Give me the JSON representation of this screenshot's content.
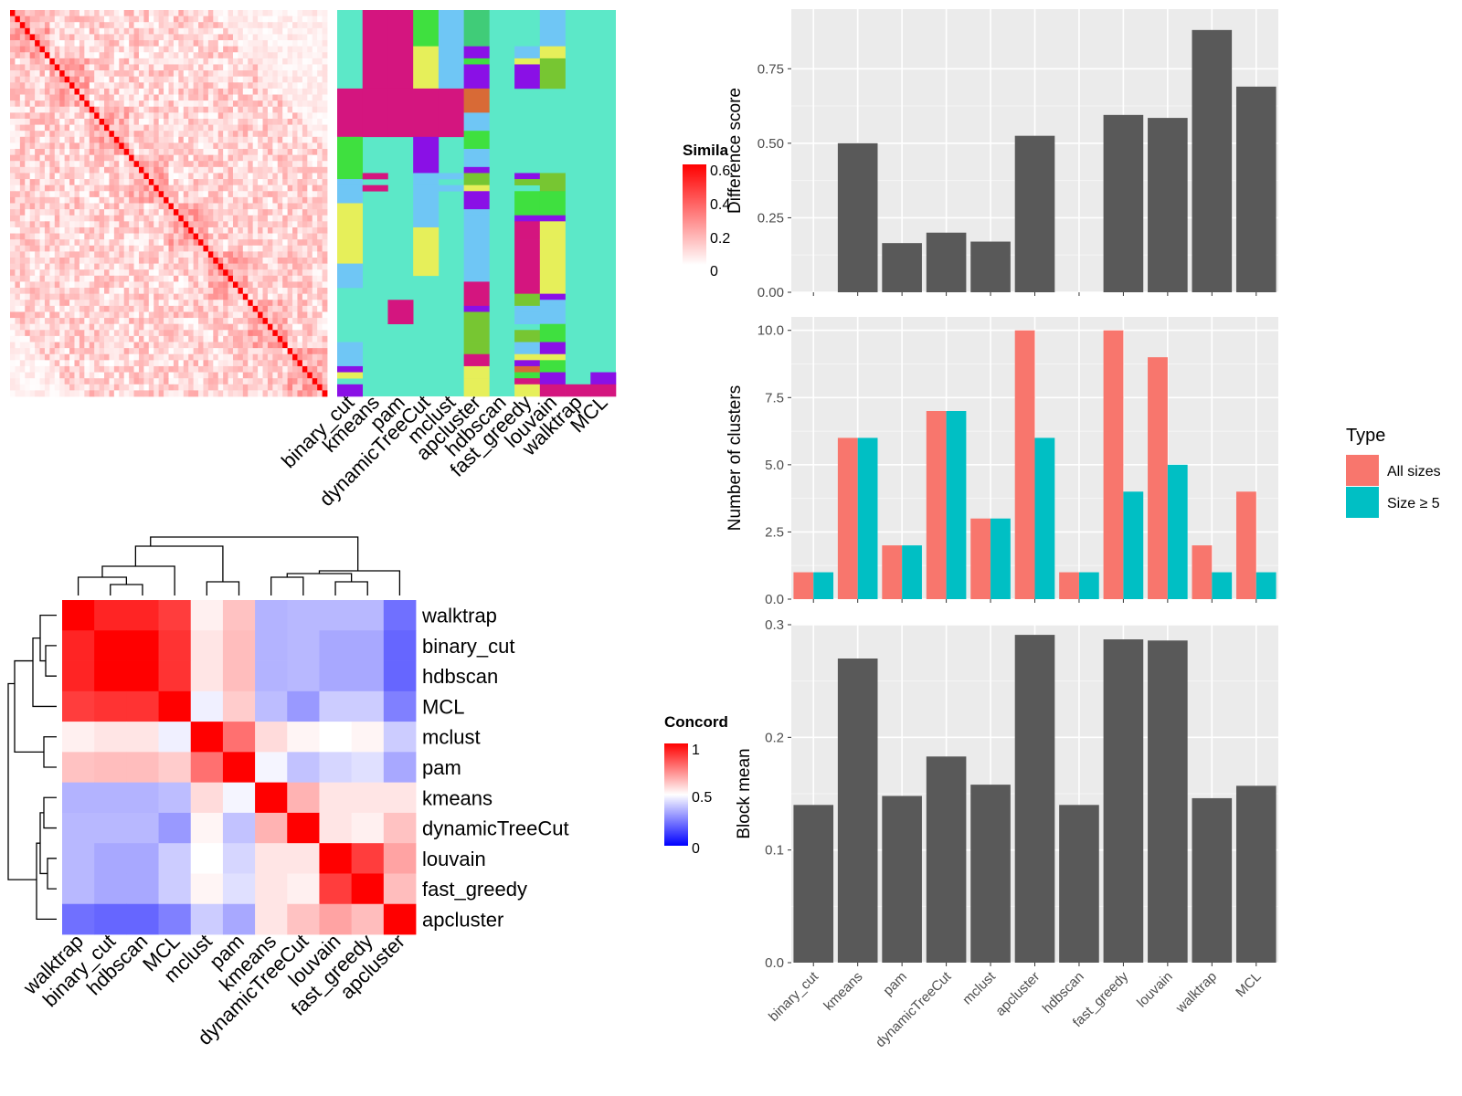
{
  "methods": [
    "binary_cut",
    "kmeans",
    "pam",
    "dynamicTreeCut",
    "mclust",
    "apcluster",
    "hdbscan",
    "fast_greedy",
    "louvain",
    "walktrap",
    "MCL"
  ],
  "palette": {
    "heat_low": "#ffffff",
    "heat_high": "#ff0000",
    "conc_low": "#0000ff",
    "conc_mid": "#ffffff",
    "conc_high": "#ff0000",
    "bar_dark": "#595959",
    "all_sizes": "#F8766D",
    "size5": "#00BFC4",
    "panel_bg": "#ebebeb",
    "cluster_bg": "#5ce8c8",
    "cluster_colors": [
      "#d4157f",
      "#3fe03f",
      "#6fc6f5",
      "#e6ef5a",
      "#8a10e6",
      "#77c632",
      "#d86a36",
      "#40cc78"
    ]
  },
  "similarity_heatmap": {
    "legend_title": "Simila",
    "legend_ticks": [
      "0.6",
      "0.4",
      "0.2",
      "0"
    ]
  },
  "concordance_heatmap": {
    "legend_title": "Concord",
    "legend_ticks": [
      "1",
      "0.5",
      "0"
    ],
    "order": [
      "walktrap",
      "binary_cut",
      "hdbscan",
      "MCL",
      "mclust",
      "pam",
      "kmeans",
      "dynamicTreeCut",
      "louvain",
      "fast_greedy",
      "apcluster"
    ],
    "matrix": [
      [
        1.0,
        0.93,
        0.93,
        0.88,
        0.53,
        0.62,
        0.35,
        0.36,
        0.36,
        0.36,
        0.22
      ],
      [
        0.93,
        1.0,
        1.0,
        0.9,
        0.55,
        0.63,
        0.35,
        0.36,
        0.33,
        0.33,
        0.2
      ],
      [
        0.93,
        1.0,
        1.0,
        0.9,
        0.55,
        0.63,
        0.35,
        0.36,
        0.33,
        0.33,
        0.2
      ],
      [
        0.88,
        0.9,
        0.9,
        1.0,
        0.47,
        0.6,
        0.37,
        0.3,
        0.4,
        0.4,
        0.25
      ],
      [
        0.53,
        0.55,
        0.55,
        0.47,
        1.0,
        0.78,
        0.57,
        0.52,
        0.5,
        0.52,
        0.4
      ],
      [
        0.62,
        0.63,
        0.63,
        0.6,
        0.78,
        1.0,
        0.48,
        0.38,
        0.42,
        0.44,
        0.33
      ],
      [
        0.35,
        0.35,
        0.35,
        0.37,
        0.57,
        0.48,
        1.0,
        0.65,
        0.55,
        0.55,
        0.55
      ],
      [
        0.36,
        0.36,
        0.36,
        0.3,
        0.52,
        0.38,
        0.65,
        1.0,
        0.55,
        0.53,
        0.62
      ],
      [
        0.36,
        0.33,
        0.33,
        0.4,
        0.5,
        0.42,
        0.55,
        0.55,
        1.0,
        0.88,
        0.68
      ],
      [
        0.36,
        0.33,
        0.33,
        0.4,
        0.52,
        0.44,
        0.55,
        0.53,
        0.88,
        1.0,
        0.63
      ],
      [
        0.22,
        0.2,
        0.2,
        0.25,
        0.4,
        0.33,
        0.55,
        0.62,
        0.68,
        0.63,
        1.0
      ]
    ]
  },
  "chart_data": [
    {
      "type": "bar",
      "categories": [
        "binary_cut",
        "kmeans",
        "pam",
        "dynamicTreeCut",
        "mclust",
        "apcluster",
        "hdbscan",
        "fast_greedy",
        "louvain",
        "walktrap",
        "MCL"
      ],
      "values": [
        0,
        0.5,
        0.165,
        0.2,
        0.17,
        0.525,
        0,
        0.595,
        0.585,
        0.88,
        0.69
      ],
      "ylabel": "Difference score",
      "ylim": [
        0,
        0.95
      ],
      "yticks": [
        "0.00",
        "0.25",
        "0.50",
        "0.75"
      ],
      "ytick_values": [
        0,
        0.25,
        0.5,
        0.75
      ],
      "grid": true
    },
    {
      "type": "bar",
      "categories": [
        "binary_cut",
        "kmeans",
        "pam",
        "dynamicTreeCut",
        "mclust",
        "apcluster",
        "hdbscan",
        "fast_greedy",
        "louvain",
        "walktrap",
        "MCL"
      ],
      "series": [
        {
          "name": "All sizes",
          "values": [
            1,
            6,
            2,
            7,
            3,
            10,
            1,
            10,
            9,
            2,
            4
          ]
        },
        {
          "name": "Size ≥ 5",
          "values": [
            1,
            6,
            2,
            7,
            3,
            6,
            1,
            4,
            5,
            1,
            1
          ]
        }
      ],
      "ylabel": "Number of clusters",
      "ylim": [
        0,
        10.5
      ],
      "yticks": [
        "0.0",
        "2.5",
        "5.0",
        "7.5",
        "10.0"
      ],
      "ytick_values": [
        0,
        2.5,
        5,
        7.5,
        10
      ],
      "legend_title": "Type",
      "legend_position": "right",
      "grid": true
    },
    {
      "type": "bar",
      "categories": [
        "binary_cut",
        "kmeans",
        "pam",
        "dynamicTreeCut",
        "mclust",
        "apcluster",
        "hdbscan",
        "fast_greedy",
        "louvain",
        "walktrap",
        "MCL"
      ],
      "values": [
        0.14,
        0.27,
        0.148,
        0.183,
        0.158,
        0.291,
        0.14,
        0.287,
        0.286,
        0.146,
        0.157
      ],
      "ylabel": "Block mean",
      "ylim": [
        0,
        0.3
      ],
      "yticks": [
        "0.0",
        "0.1",
        "0.2",
        "0.3"
      ],
      "ytick_values": [
        0,
        0.1,
        0.2,
        0.3
      ],
      "grid": true
    }
  ]
}
